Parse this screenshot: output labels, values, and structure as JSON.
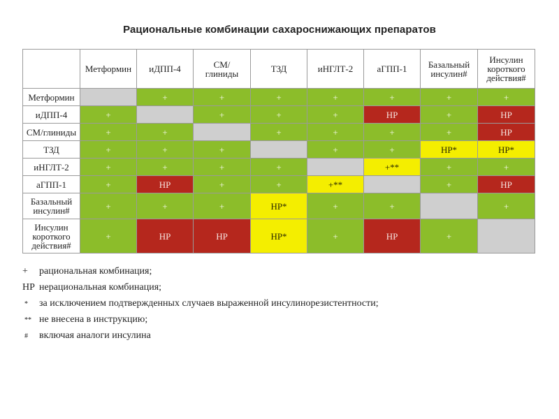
{
  "title": "Рациональные комбинации сахароснижающих препаратов",
  "columns": [
    "Метформин",
    "иДПП-4",
    "СМ/ глиниды",
    "ТЗД",
    "иНГЛТ-2",
    "аГПП-1",
    "Базальный инсулин#",
    "Инсулин короткого действия#"
  ],
  "rows": [
    {
      "label": "Метформин",
      "cells": [
        {
          "v": "",
          "c": "x"
        },
        {
          "v": "+",
          "c": "g"
        },
        {
          "v": "+",
          "c": "g"
        },
        {
          "v": "+",
          "c": "g"
        },
        {
          "v": "+",
          "c": "g"
        },
        {
          "v": "+",
          "c": "g"
        },
        {
          "v": "+",
          "c": "g"
        },
        {
          "v": "+",
          "c": "g"
        }
      ]
    },
    {
      "label": "иДПП-4",
      "cells": [
        {
          "v": "+",
          "c": "g"
        },
        {
          "v": "",
          "c": "x"
        },
        {
          "v": "+",
          "c": "g"
        },
        {
          "v": "+",
          "c": "g"
        },
        {
          "v": "+",
          "c": "g"
        },
        {
          "v": "НР",
          "c": "r"
        },
        {
          "v": "+",
          "c": "g"
        },
        {
          "v": "НР",
          "c": "r"
        }
      ]
    },
    {
      "label": "СМ/глиниды",
      "cells": [
        {
          "v": "+",
          "c": "g"
        },
        {
          "v": "+",
          "c": "g"
        },
        {
          "v": "",
          "c": "x"
        },
        {
          "v": "+",
          "c": "g"
        },
        {
          "v": "+",
          "c": "g"
        },
        {
          "v": "+",
          "c": "g"
        },
        {
          "v": "+",
          "c": "g"
        },
        {
          "v": "НР",
          "c": "r"
        }
      ]
    },
    {
      "label": "ТЗД",
      "cells": [
        {
          "v": "+",
          "c": "g"
        },
        {
          "v": "+",
          "c": "g"
        },
        {
          "v": "+",
          "c": "g"
        },
        {
          "v": "",
          "c": "x"
        },
        {
          "v": "+",
          "c": "g"
        },
        {
          "v": "+",
          "c": "g"
        },
        {
          "v": "НР*",
          "c": "y"
        },
        {
          "v": "НР*",
          "c": "y"
        }
      ]
    },
    {
      "label": "иНГЛТ-2",
      "cells": [
        {
          "v": "+",
          "c": "g"
        },
        {
          "v": "+",
          "c": "g"
        },
        {
          "v": "+",
          "c": "g"
        },
        {
          "v": "+",
          "c": "g"
        },
        {
          "v": "",
          "c": "x"
        },
        {
          "v": "+**",
          "c": "y"
        },
        {
          "v": "+",
          "c": "g"
        },
        {
          "v": "+",
          "c": "g"
        }
      ]
    },
    {
      "label": "аГПП-1",
      "cells": [
        {
          "v": "+",
          "c": "g"
        },
        {
          "v": "НР",
          "c": "r"
        },
        {
          "v": "+",
          "c": "g"
        },
        {
          "v": "+",
          "c": "g"
        },
        {
          "v": "+**",
          "c": "y"
        },
        {
          "v": "",
          "c": "x"
        },
        {
          "v": "+",
          "c": "g"
        },
        {
          "v": "НР",
          "c": "r"
        }
      ]
    },
    {
      "label": "Базальный инсулин#",
      "cells": [
        {
          "v": "+",
          "c": "g"
        },
        {
          "v": "+",
          "c": "g"
        },
        {
          "v": "+",
          "c": "g"
        },
        {
          "v": "НР*",
          "c": "y"
        },
        {
          "v": "+",
          "c": "g"
        },
        {
          "v": "+",
          "c": "g"
        },
        {
          "v": "",
          "c": "x"
        },
        {
          "v": "+",
          "c": "g"
        }
      ]
    },
    {
      "label": "Инсулин короткого действия#",
      "cells": [
        {
          "v": "+",
          "c": "g"
        },
        {
          "v": "НР",
          "c": "r"
        },
        {
          "v": "НР",
          "c": "r"
        },
        {
          "v": "НР*",
          "c": "y"
        },
        {
          "v": "+",
          "c": "g"
        },
        {
          "v": "НР",
          "c": "r"
        },
        {
          "v": "+",
          "c": "g"
        },
        {
          "v": "",
          "c": "x"
        }
      ]
    }
  ],
  "legend": [
    {
      "symbol": "+",
      "text": "рациональная комбинация;"
    },
    {
      "symbol": "НР",
      "text": "нерациональная комбинация;"
    },
    {
      "symbol": "*",
      "text": "за исключением подтвержденных случаев выраженной инсулинорезистентности;"
    },
    {
      "symbol": "**",
      "text": "не внесена в инструкцию;"
    },
    {
      "symbol": "#",
      "text": "включая аналоги инсулина"
    }
  ],
  "colors": {
    "rational": "#8cbd2a",
    "irrational": "#b5271d",
    "conditional": "#f4ee00",
    "diagonal": "#cfcfcf"
  }
}
